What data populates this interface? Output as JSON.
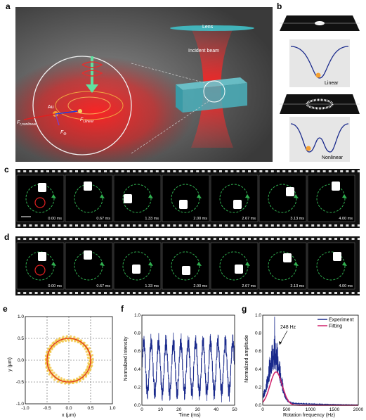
{
  "panels": {
    "a": {
      "letter": "a",
      "lens_label": "Lens",
      "beam_label": "Incident beam",
      "au_label": "Au",
      "f_nonlinear": "F",
      "f_nonlinear_sub": "r,nonlinear",
      "f_linear": "F",
      "f_linear_sub": "r,linear",
      "f_phi": "F",
      "f_phi_sub": "Φ"
    },
    "b": {
      "letter": "b",
      "linear_label": "Linear",
      "nonlinear_label": "Nonlinear"
    },
    "c": {
      "letter": "c",
      "times": [
        "0.00 ms",
        "0.67 ms",
        "1.33 ms",
        "2.00 ms",
        "2.67 ms",
        "3.13 ms",
        "4.00 ms"
      ]
    },
    "d": {
      "letter": "d",
      "times": [
        "0.00 ms",
        "0.67 ms",
        "1.33 ms",
        "2.00 ms",
        "2.67 ms",
        "3.13 ms",
        "4.00 ms"
      ]
    },
    "e": {
      "letter": "e"
    },
    "f": {
      "letter": "f"
    },
    "g": {
      "letter": "g"
    }
  },
  "chart_data": [
    {
      "panel": "e",
      "type": "scatter",
      "xlabel": "x (μm)",
      "ylabel": "y (μm)",
      "xlim": [
        -1.0,
        1.0
      ],
      "ylim": [
        -1.0,
        1.0
      ],
      "xticks": [
        "-1.0",
        "-0.5",
        "0.0",
        "0.5",
        "1.0"
      ],
      "yticks": [
        "1.0",
        "0.5",
        "0.0",
        "-0.5",
        "-1.0"
      ],
      "grid": true,
      "circle_radius": 0.5,
      "colors": {
        "points": "#f0c23a",
        "fit": "#e03020"
      }
    },
    {
      "panel": "f",
      "type": "line",
      "xlabel": "Time (ms)",
      "ylabel": "Normalized intensity",
      "xlim": [
        0,
        50
      ],
      "ylim": [
        0,
        1.0
      ],
      "xticks": [
        "0",
        "10",
        "20",
        "30",
        "40",
        "50"
      ],
      "yticks": [
        "0.0",
        "0.2",
        "0.4",
        "0.6",
        "0.8",
        "1.0"
      ],
      "period_ms": 4.0,
      "series_color": "#1a2a8c"
    },
    {
      "panel": "g",
      "type": "line",
      "xlabel": "Rotation frequency (Hz)",
      "ylabel": "Normalized amplitude",
      "xlim": [
        0,
        2000
      ],
      "ylim": [
        0,
        1.0
      ],
      "xticks": [
        "0",
        "500",
        "1000",
        "1500",
        "2000"
      ],
      "yticks": [
        "0.0",
        "0.2",
        "0.4",
        "0.6",
        "0.8",
        "1.0"
      ],
      "annotation": "248 Hz",
      "peak_hz": 248,
      "series": [
        {
          "name": "Experiment",
          "color": "#1a2a8c"
        },
        {
          "name": "Fitting",
          "color": "#d0206a",
          "peak_amplitude": 0.37,
          "center_hz": 280,
          "width_hz": 180
        }
      ],
      "legend": "top-right"
    }
  ]
}
